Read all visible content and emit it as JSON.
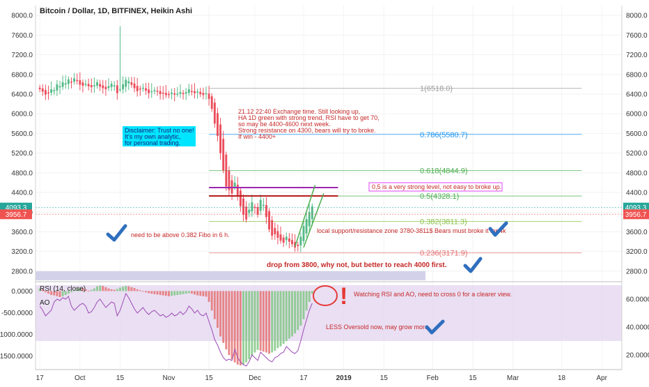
{
  "chart_title": "Bitcoin / Dollar, 1D, BITFINEX, Heikin Ashi",
  "colors": {
    "bull": "#53b987",
    "bear": "#eb4d5c",
    "fib_ref": "#9e9e9e",
    "fib_786": "#2196f3",
    "fib_618": "#4caf50",
    "fib_05": "#4caf50",
    "fib_382": "#8bc34a",
    "fib_0236": "#e57373",
    "note_red": "#c62828",
    "purple_line": "#9c27b0",
    "darkred_line": "#b71c1c",
    "disclaimer_bg": "#00e5ff",
    "checkmark": "#2f6fbf",
    "rsi_band": "#e1d1ee",
    "rsi_line": "#9c4bb5"
  },
  "chart_data": [
    {
      "type": "candlestick",
      "title": "Bitcoin / Dollar, 1D, BITFINEX, Heikin Ashi",
      "ylabel": "",
      "ylim": [
        2600,
        8200
      ],
      "yticks": [
        "8000.0",
        "7600.0",
        "7200.0",
        "6800.0",
        "6400.0",
        "6000.0",
        "5600.0",
        "5200.0",
        "4800.0",
        "4400.0",
        "4000.0",
        "3600.0",
        "3200.0",
        "2800.0"
      ],
      "ytick_values": [
        8000,
        7600,
        7200,
        6800,
        6400,
        6000,
        5600,
        5200,
        4800,
        4400,
        4000,
        3600,
        3200,
        2800
      ],
      "x_labels": [
        "17",
        "Oct",
        "15",
        "Nov",
        "15",
        "Dec",
        "17",
        "2019",
        "15",
        "Feb",
        "15",
        "Mar",
        "18",
        "Apr"
      ],
      "x_label_days": [
        0,
        14,
        28,
        45,
        59,
        75,
        92,
        106,
        120,
        137,
        151,
        165,
        182,
        196
      ],
      "x_range_days": [
        -1.5,
        203
      ],
      "current_price": "4093.3",
      "current_price_value": 4093.3,
      "second_price": "3956.7",
      "second_price_value": 3956.7,
      "candles_start_day": 0,
      "candle_closes": [
        6500,
        6450,
        6390,
        6420,
        6500,
        6480,
        6600,
        6560,
        6640,
        6620,
        6700,
        6650,
        6720,
        6680,
        6590,
        6570,
        6610,
        6560,
        6540,
        6580,
        6640,
        6550,
        6520,
        6500,
        6560,
        6610,
        6580,
        6420,
        6500,
        6600,
        6690,
        6660,
        6590,
        6520,
        6460,
        6500,
        6530,
        6470,
        6420,
        6460,
        6480,
        6450,
        6400,
        6420,
        6380,
        6400,
        6430,
        6390,
        6410,
        6440,
        6400,
        6440,
        6500,
        6460,
        6420,
        6450,
        6400,
        6380,
        6420,
        6300,
        6100,
        5800,
        5550,
        5200,
        4850,
        4520,
        4450,
        4380,
        4600,
        4320,
        4120,
        3950,
        3850,
        4050,
        4200,
        4100,
        3950,
        4250,
        4150,
        3900,
        3650,
        3520,
        3550,
        3480,
        3420,
        3380,
        3500,
        3400,
        3350,
        3280,
        3310,
        3500,
        3720,
        3860,
        4000,
        4120
      ],
      "fib_levels": [
        {
          "label": "1(6518.0)",
          "value": 6518.0,
          "color": "#9e9e9e"
        },
        {
          "label": "0.786(5580.7)",
          "value": 5580.7,
          "color": "#2196f3"
        },
        {
          "label": "0.618(4844.9)",
          "value": 4844.9,
          "color": "#4caf50"
        },
        {
          "label": "0.5(4328.1)",
          "value": 4328.1,
          "color": "#4caf50"
        },
        {
          "label": "0.382(3811.3)",
          "value": 3811.3,
          "color": "#8bc34a"
        },
        {
          "label": "0.236(3171.9)",
          "value": 3171.9,
          "color": "#e57373"
        }
      ],
      "horizontal_lines": [
        {
          "value": 4500,
          "color": "#9c27b0",
          "from_day": 59,
          "to_day": 104
        },
        {
          "value": 4330,
          "color": "#b71c1c",
          "from_day": 59,
          "to_day": 104
        }
      ],
      "trend_lines": [
        {
          "from_day": 89,
          "from_value": 3300,
          "to_day": 96,
          "to_value": 4550
        },
        {
          "from_day": 92,
          "from_value": 3280,
          "to_day": 99,
          "to_value": 4380
        }
      ]
    },
    {
      "type": "bar",
      "title": "RSI (14, close)",
      "subtitle": "AO",
      "ylim": [
        -1800,
        200
      ],
      "yticks": [
        "0.0000",
        "-500.0000",
        "-1000.0000",
        "-1500.0000"
      ],
      "ytick_values": [
        0,
        -500,
        -1000,
        -1500
      ],
      "rsi_ticks": [
        "60.0000",
        "40.0000",
        "20.0000"
      ],
      "rsi_tick_values": [
        60,
        40,
        20
      ],
      "rsi_range": [
        10,
        72
      ],
      "rsi_band": [
        30,
        70
      ],
      "ao_values": [
        60,
        40,
        -30,
        -60,
        -90,
        -100,
        -120,
        -140,
        -120,
        -90,
        -60,
        -30,
        20,
        60,
        80,
        70,
        40,
        10,
        30,
        60,
        110,
        130,
        120,
        90,
        60,
        40,
        30,
        50,
        80,
        100,
        120,
        110,
        90,
        70,
        40,
        20,
        -10,
        -30,
        -50,
        -60,
        -70,
        -80,
        -90,
        -100,
        -110,
        -120,
        -110,
        -100,
        -90,
        -80,
        -70,
        -60,
        -50,
        -60,
        -80,
        -100,
        -110,
        -120,
        -130,
        -250,
        -450,
        -650,
        -850,
        -1050,
        -1200,
        -1350,
        -1480,
        -1580,
        -1650,
        -1700,
        -1720,
        -1700,
        -1650,
        -1580,
        -1500,
        -1420,
        -1360,
        -1380,
        -1400,
        -1420,
        -1450,
        -1420,
        -1380,
        -1320,
        -1280,
        -1220,
        -1160,
        -1100,
        -1050,
        -980,
        -900,
        -800,
        -650,
        -450,
        -250,
        -60
      ],
      "rsi_values": [
        55,
        52,
        48,
        50,
        52,
        58,
        60,
        59,
        61,
        60,
        62,
        55,
        52,
        54,
        56,
        57,
        55,
        50,
        51,
        54,
        58,
        60,
        57,
        54,
        56,
        58,
        57,
        48,
        52,
        58,
        64,
        61,
        57,
        53,
        50,
        52,
        54,
        51,
        49,
        51,
        52,
        50,
        48,
        49,
        47,
        48,
        50,
        48,
        49,
        51,
        49,
        51,
        55,
        53,
        50,
        52,
        49,
        48,
        50,
        44,
        38,
        31,
        27,
        22,
        18,
        16,
        17,
        16,
        24,
        18,
        15,
        13,
        12,
        15,
        20,
        18,
        16,
        22,
        20,
        18,
        16,
        15,
        18,
        19,
        21,
        22,
        26,
        24,
        22,
        21,
        23,
        30,
        38,
        45,
        52,
        57
      ]
    }
  ],
  "annotations": {
    "note_1221": "21.12 22:40 Exchange time. Still looking up,\nHA 1D green with strong trend, RSI have to get 70,\nso may be 4400-4600 next week.\nStrong resistance on 4300, bears will try to broke.\nIf win - 4400+",
    "disclaimer": "Disclaimer: Trust no one!\nIt's my own analytic,\nfor personal trading.",
    "strong_level": "0,5 is a very strong level, not easy to broke up.",
    "fibo_note": "need to be above 0.382 Fibo in 6 h.",
    "support_note": "local support/resistance zone 3780-3811$ Bears must broke it for 4k",
    "drop_note": "drop from 3800, why not, but better to reach 4000 first.",
    "watching_note": "Watching RSI and AO, need to cross 0 for a clearer view.",
    "oversold_note": "LESS Oversold now, may grow more",
    "exclamation": "!"
  }
}
